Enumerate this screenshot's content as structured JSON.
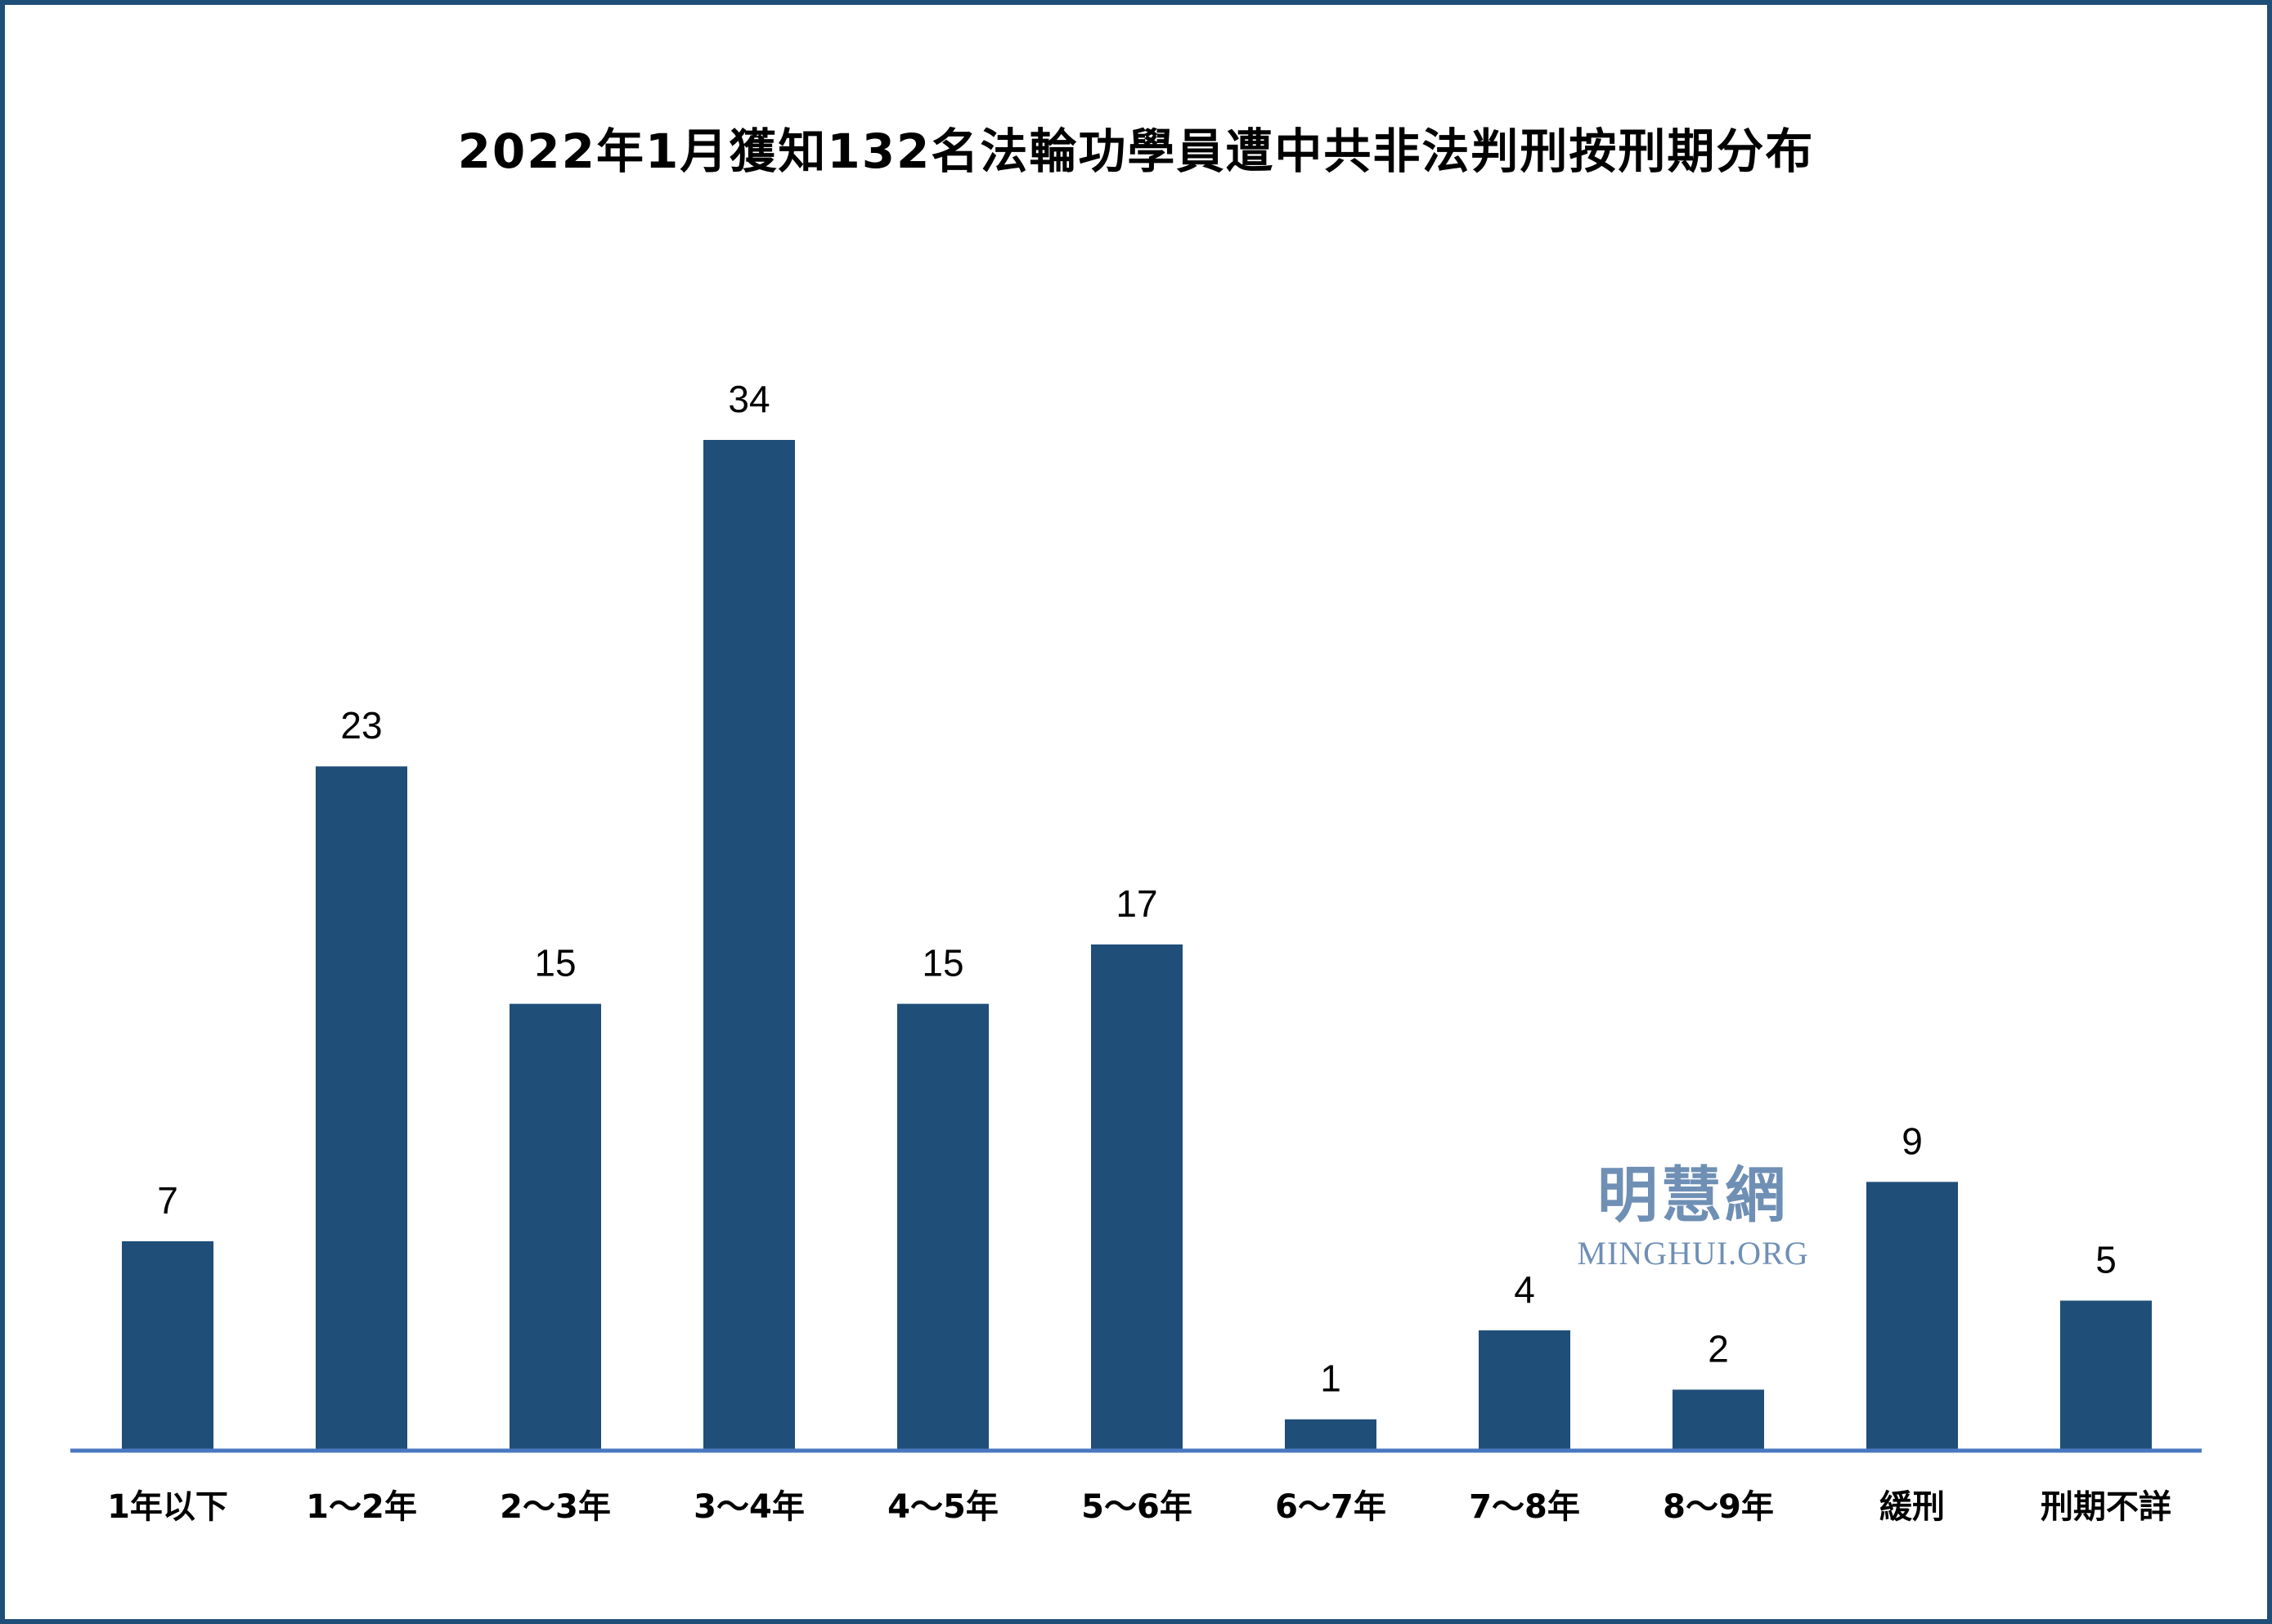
{
  "chart_data": {
    "type": "bar",
    "title": "2022年1月獲知132名法輪功學員遭中共非法判刑按刑期分布",
    "categories": [
      "1年以下",
      "1～2年",
      "2～3年",
      "3～4年",
      "4～5年",
      "5～6年",
      "6～7年",
      "7～8年",
      "8～9年",
      "緩刑",
      "刑期不詳"
    ],
    "values": [
      7,
      23,
      15,
      34,
      15,
      17,
      1,
      4,
      2,
      9,
      5
    ],
    "ylim": [
      0,
      40
    ],
    "grid": false,
    "bar_color": "#1f4e79",
    "axis_color": "#4a78c0"
  },
  "watermark": {
    "chinese": "明慧網",
    "english": "MINGHUI.ORG"
  }
}
